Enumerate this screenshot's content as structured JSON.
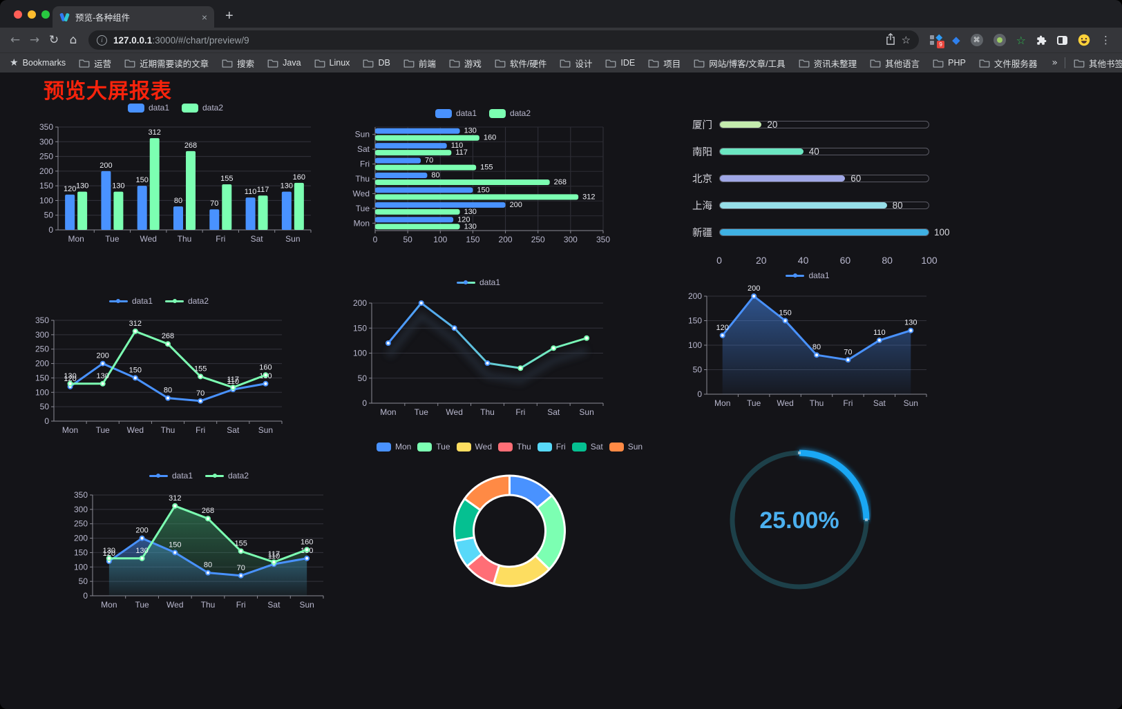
{
  "browser": {
    "tab": {
      "title": "预览-各种组件"
    },
    "url": {
      "host": "127.0.0.1",
      "rest": ":3000/#/chart/preview/9"
    },
    "bookmarks_label": "Bookmarks",
    "bookmarks": [
      "运营",
      "近期需要读的文章",
      "搜索",
      "Java",
      "Linux",
      "DB",
      "前端",
      "游戏",
      "软件/硬件",
      "设计",
      "IDE",
      "项目",
      "网站/博客/文章/工具",
      "资讯未整理",
      "其他语言",
      "PHP",
      "文件服务器"
    ],
    "bookmarks_overflow": "»",
    "other_bookmarks": "其他书签",
    "extension_badge": "9"
  },
  "icons": {
    "back": "←",
    "forward": "→",
    "reload": "↻",
    "home": "⌂",
    "info": "i",
    "star": "☆",
    "close": "×",
    "new_tab": "+",
    "menu": "⋮",
    "command": "⌘",
    "green_star": "☆",
    "gem": "◆",
    "bookmarks_star": "★"
  },
  "page": {
    "title": "预览大屏报表",
    "title_color": "#f7230c"
  },
  "chart_data": [
    {
      "id": "bar-vertical",
      "type": "bar",
      "categories": [
        "Mon",
        "Tue",
        "Wed",
        "Thu",
        "Fri",
        "Sat",
        "Sun"
      ],
      "series": [
        {
          "name": "data1",
          "color": "#4992ff",
          "values": [
            120,
            200,
            150,
            80,
            70,
            110,
            130
          ]
        },
        {
          "name": "data2",
          "color": "#7cffb2",
          "values": [
            130,
            130,
            312,
            268,
            155,
            117,
            160
          ]
        }
      ],
      "ylim": [
        0,
        350
      ],
      "ytick": 50,
      "labels": true,
      "grid": true,
      "legend_position": "top"
    },
    {
      "id": "bar-horizontal",
      "type": "hbar",
      "categories": [
        "Mon",
        "Tue",
        "Wed",
        "Thu",
        "Fri",
        "Sat",
        "Sun"
      ],
      "series": [
        {
          "name": "data1",
          "color": "#4992ff",
          "values": [
            120,
            200,
            150,
            80,
            70,
            110,
            130
          ]
        },
        {
          "name": "data2",
          "color": "#7cffb2",
          "values": [
            130,
            130,
            312,
            268,
            155,
            117,
            160
          ]
        }
      ],
      "xlim": [
        0,
        350
      ],
      "xtick": 50,
      "labels": true,
      "legend_position": "top"
    },
    {
      "id": "city-progress",
      "type": "progress",
      "rows": [
        {
          "label": "厦门",
          "value": 20,
          "color": "#c4ebad"
        },
        {
          "label": "南阳",
          "value": 40,
          "color": "#6be6c1"
        },
        {
          "label": "北京",
          "value": 60,
          "color": "#a0a7e6"
        },
        {
          "label": "上海",
          "value": 80,
          "color": "#96dee8"
        },
        {
          "label": "新疆",
          "value": 100,
          "color": "#3fb1e3"
        }
      ],
      "xlim": [
        0,
        100
      ],
      "ticks": [
        0,
        20,
        40,
        60,
        80,
        100
      ]
    },
    {
      "id": "line-two-series",
      "type": "line",
      "categories": [
        "Mon",
        "Tue",
        "Wed",
        "Thu",
        "Fri",
        "Sat",
        "Sun"
      ],
      "series": [
        {
          "name": "data1",
          "color": "#4992ff",
          "values": [
            120,
            200,
            150,
            80,
            70,
            110,
            130
          ]
        },
        {
          "name": "data2",
          "color": "#7cffb2",
          "values": [
            130,
            130,
            312,
            268,
            155,
            117,
            160
          ]
        }
      ],
      "ylim": [
        0,
        350
      ],
      "ytick": 50,
      "labels": true,
      "legend_position": "top"
    },
    {
      "id": "line-gradient",
      "type": "line",
      "categories": [
        "Mon",
        "Tue",
        "Wed",
        "Thu",
        "Fri",
        "Sat",
        "Sun"
      ],
      "series": [
        {
          "name": "data1",
          "color": "#4992ff",
          "color2": "#7cffb2",
          "shadow": true,
          "values": [
            120,
            200,
            150,
            80,
            70,
            110,
            130
          ]
        }
      ],
      "ylim": [
        0,
        200
      ],
      "ytick": 50,
      "labels": false,
      "legend_position": "top"
    },
    {
      "id": "area-single",
      "type": "line",
      "categories": [
        "Mon",
        "Tue",
        "Wed",
        "Thu",
        "Fri",
        "Sat",
        "Sun"
      ],
      "series": [
        {
          "name": "data1",
          "color": "#4992ff",
          "area": "#4992ff",
          "values": [
            120,
            200,
            150,
            80,
            70,
            110,
            130
          ]
        }
      ],
      "ylim": [
        0,
        200
      ],
      "ytick": 50,
      "labels": true,
      "legend_position": "top"
    },
    {
      "id": "area-two-series",
      "type": "line",
      "categories": [
        "Mon",
        "Tue",
        "Wed",
        "Thu",
        "Fri",
        "Sat",
        "Sun"
      ],
      "series": [
        {
          "name": "data1",
          "color": "#4992ff",
          "area": "#4992ff",
          "values": [
            120,
            200,
            150,
            80,
            70,
            110,
            130
          ]
        },
        {
          "name": "data2",
          "color": "#7cffb2",
          "area": "#3fae73",
          "values": [
            130,
            130,
            312,
            268,
            155,
            117,
            160
          ]
        }
      ],
      "ylim": [
        0,
        350
      ],
      "ytick": 50,
      "labels": true,
      "legend_position": "top"
    },
    {
      "id": "donut-week",
      "type": "pie",
      "items": [
        {
          "name": "Mon",
          "value": 120,
          "color": "#4992ff"
        },
        {
          "name": "Tue",
          "value": 200,
          "color": "#7cffb2"
        },
        {
          "name": "Wed",
          "value": 150,
          "color": "#fddd60"
        },
        {
          "name": "Thu",
          "value": 80,
          "color": "#ff6e76"
        },
        {
          "name": "Fri",
          "value": 70,
          "color": "#58d9f9"
        },
        {
          "name": "Sat",
          "value": 110,
          "color": "#05c091"
        },
        {
          "name": "Sun",
          "value": 130,
          "color": "#ff8a45"
        }
      ],
      "legend_position": "top"
    },
    {
      "id": "ring-gauge",
      "type": "gauge",
      "percent": 25,
      "value_label": "25.00%",
      "color": "#1aa7f4",
      "track": "#1d4049",
      "text_color": "#4bb0ef"
    }
  ]
}
